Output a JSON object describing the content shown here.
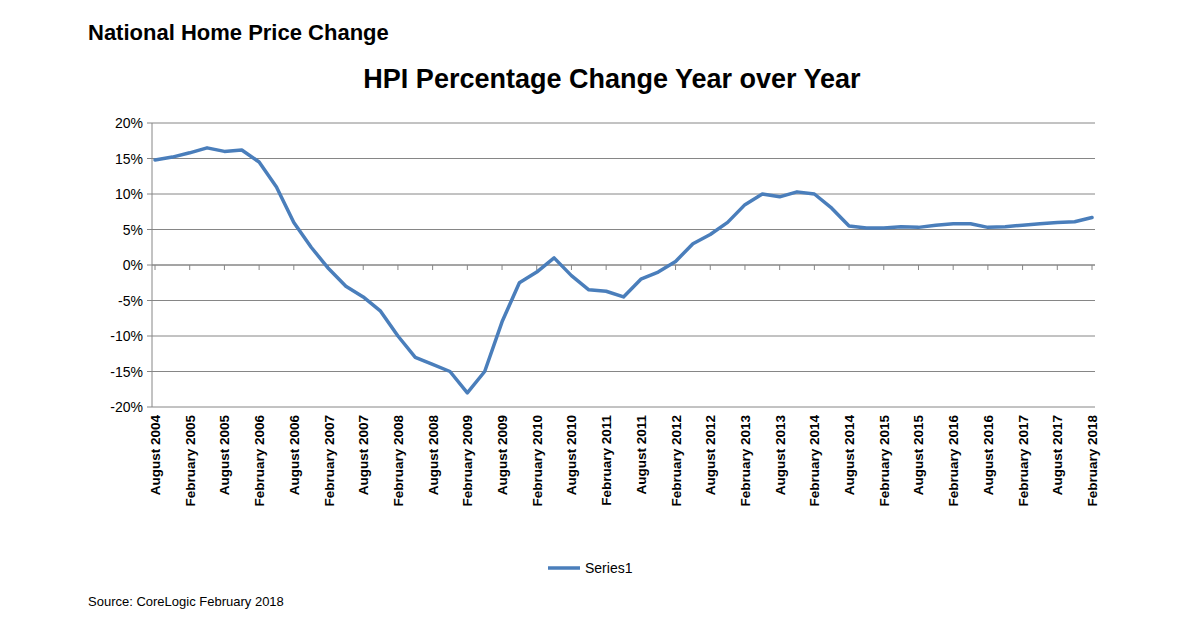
{
  "chart_data": {
    "type": "line",
    "subtitle": "National Home Price Change",
    "title": "HPI Percentage Change Year over Year",
    "source": "Source: CoreLogic February 2018",
    "categories": [
      "August 2004",
      null,
      "February 2005",
      null,
      "August 2005",
      null,
      "February 2006",
      null,
      "August 2006",
      null,
      "February 2007",
      null,
      "August 2007",
      null,
      "February 2008",
      null,
      "August 2008",
      null,
      "February 2009",
      null,
      "August 2009",
      null,
      "February 2010",
      null,
      "August 2010",
      null,
      "February 2011",
      null,
      "August 2011",
      null,
      "February 2012",
      null,
      "August 2012",
      null,
      "February 2013",
      null,
      "August 2013",
      null,
      "February 2014",
      null,
      "August 2014",
      null,
      "February 2015",
      null,
      "August 2015",
      null,
      "February 2016",
      null,
      "August 2016",
      null,
      "February 2017",
      null,
      "August 2017",
      null,
      "February 2018"
    ],
    "series": [
      {
        "name": "Series1",
        "color": "#4a7ebb",
        "values": [
          14.8,
          15.2,
          15.8,
          16.5,
          16.0,
          16.2,
          14.5,
          11.0,
          6.0,
          2.5,
          -0.5,
          -3.0,
          -4.5,
          -6.5,
          -10.0,
          -13.0,
          -14.0,
          -15.0,
          -18.0,
          -15.0,
          -8.0,
          -2.5,
          -1.0,
          1.0,
          -1.5,
          -3.5,
          -3.7,
          -4.5,
          -2.0,
          -1.0,
          0.5,
          3.0,
          4.3,
          6.0,
          8.5,
          10.0,
          9.6,
          10.3,
          10.0,
          8.0,
          5.5,
          5.2,
          5.2,
          5.4,
          5.3,
          5.6,
          5.8,
          5.8,
          5.3,
          5.4,
          5.6,
          5.8,
          6.0,
          6.1,
          6.7
        ]
      }
    ],
    "ylim": [
      -20,
      20
    ],
    "yticks": [
      {
        "value": -20,
        "label": "-20%"
      },
      {
        "value": -15,
        "label": "-15%"
      },
      {
        "value": -10,
        "label": "-10%"
      },
      {
        "value": -5,
        "label": "-5%"
      },
      {
        "value": 0,
        "label": "0%"
      },
      {
        "value": 5,
        "label": "5%"
      },
      {
        "value": 10,
        "label": "10%"
      },
      {
        "value": 15,
        "label": "15%"
      },
      {
        "value": 20,
        "label": "20%"
      }
    ],
    "grid": true,
    "legend": "bottom"
  }
}
